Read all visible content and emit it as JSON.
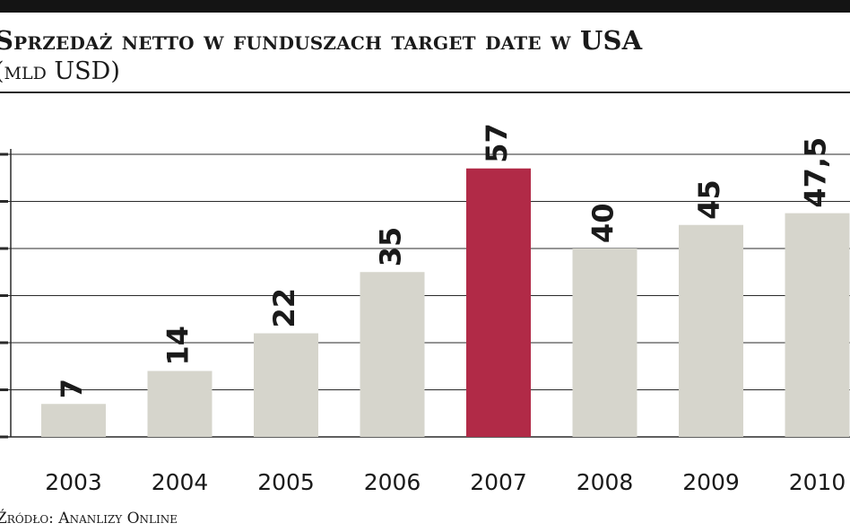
{
  "header": {
    "title": "Sprzedaż netto w funduszach target date w USA",
    "subtitle": "(mld USD)"
  },
  "footer": {
    "source": "Źródło: Ananlizy Online"
  },
  "colors": {
    "bar": "#d6d5cc",
    "highlight": "#b12a47",
    "axis": "#2a2a2a",
    "grid": "#2a2a2a"
  },
  "chart_data": {
    "type": "bar",
    "title": "Sprzedaż netto w funduszach target date w USA",
    "subtitle": "(mld USD)",
    "categories": [
      "2003",
      "2004",
      "2005",
      "2006",
      "2007",
      "2008",
      "2009",
      "2010"
    ],
    "values": [
      7,
      14,
      22,
      35,
      57,
      40,
      45,
      47.5
    ],
    "value_labels": [
      "7",
      "14",
      "22",
      "35",
      "57",
      "40",
      "45",
      "47,5"
    ],
    "highlight_category": "2007",
    "ylim": [
      0,
      60
    ],
    "ytick_step": 10,
    "grid": true,
    "xlabel": "",
    "ylabel": ""
  }
}
